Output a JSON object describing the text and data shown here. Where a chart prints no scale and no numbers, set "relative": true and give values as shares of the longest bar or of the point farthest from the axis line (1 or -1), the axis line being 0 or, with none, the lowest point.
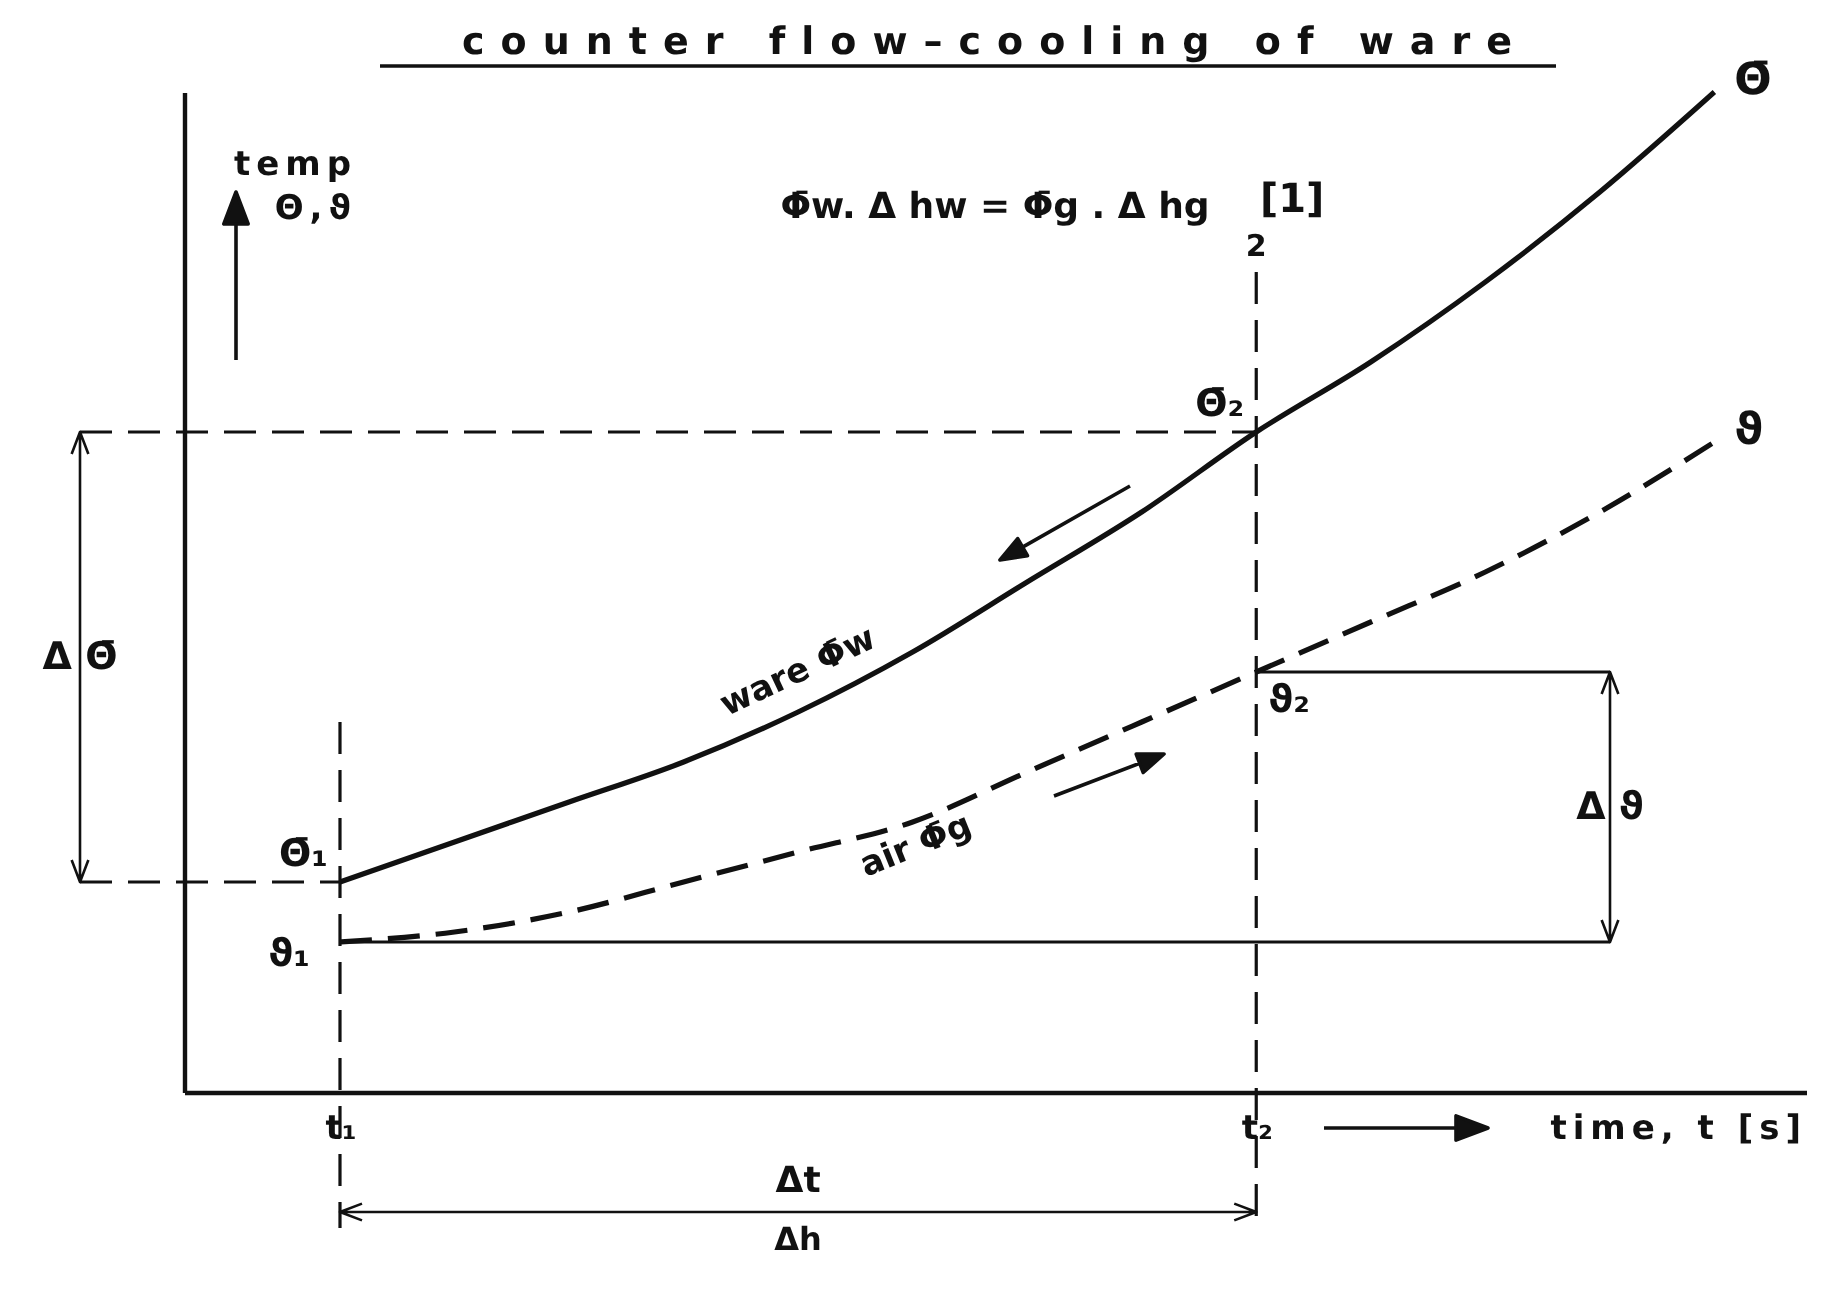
{
  "chart_data": {
    "type": "line",
    "title": "counter flow–cooling of ware",
    "subtitle": "Φ̄w. Δ hw = Φ̄g . Δ hg",
    "xlabel": "time, t [s]",
    "ylabel": "temp\nΘ,ϑ",
    "relative": true,
    "categories": [
      "t₁",
      null,
      null,
      null,
      null,
      null,
      null,
      null,
      "t₂",
      null,
      null,
      null,
      null
    ],
    "series": [
      {
        "name": "Θ̄",
        "color": "#111111",
        "line_style": "solid",
        "values": [
          0.21,
          0.25,
          0.29,
          0.33,
          0.38,
          0.44,
          0.51,
          0.58,
          0.66,
          0.73,
          0.81,
          0.9,
          1.0
        ]
      },
      {
        "name": "ϑ",
        "color": "#111111",
        "line_style": "dashed",
        "values": [
          0.15,
          0.16,
          0.18,
          0.21,
          0.24,
          0.27,
          0.32,
          0.37,
          0.42,
          0.47,
          0.52,
          0.58,
          0.65
        ]
      }
    ],
    "ref_lines": [
      {
        "axis": "x",
        "value": "t₁",
        "line_style": "dashed"
      },
      {
        "axis": "x",
        "value": "t₂",
        "label": "2",
        "line_style": "dashed"
      },
      {
        "axis": "y",
        "value": 0.66,
        "label": "Θ̄₂",
        "line_style": "dashed"
      },
      {
        "axis": "y",
        "value": 0.21,
        "label": "Θ̄₁",
        "line_style": "dashed"
      },
      {
        "axis": "y",
        "value": 0.42,
        "label": "ϑ₂",
        "line_style": "solid"
      },
      {
        "axis": "y",
        "value": 0.15,
        "label": "ϑ₁",
        "line_style": "solid"
      }
    ],
    "annotations": [
      "ware Φ̄w",
      "air Φ̄g",
      "[1]",
      "Δ Θ̄",
      "Δ ϑ",
      "Δt",
      "Δh"
    ]
  }
}
